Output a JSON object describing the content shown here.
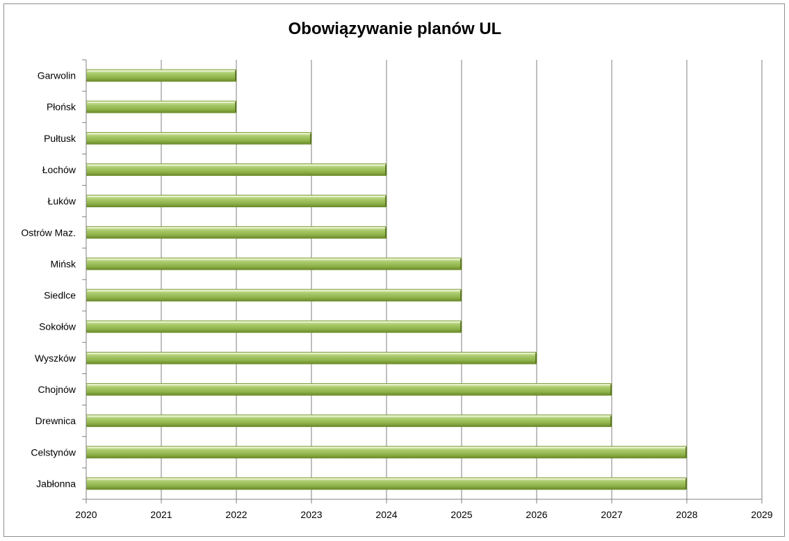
{
  "chart_data": {
    "type": "bar",
    "orientation": "horizontal",
    "title": "Obowiązywanie planów UL",
    "xlabel": "",
    "ylabel": "",
    "categories": [
      "Garwolin",
      "Płońsk",
      "Pułtusk",
      "Łochów",
      "Łuków",
      "Ostrów Maz.",
      "Mińsk",
      "Siedlce",
      "Sokołów",
      "Wyszków",
      "Chojnów",
      "Drewnica",
      "Celstynów",
      "Jabłonna"
    ],
    "values": [
      2022,
      2022,
      2023,
      2024,
      2024,
      2024,
      2025,
      2025,
      2025,
      2026,
      2027,
      2027,
      2028,
      2028
    ],
    "xlim": [
      2020,
      2029
    ],
    "xticks": [
      "2020",
      "2021",
      "2022",
      "2023",
      "2024",
      "2025",
      "2026",
      "2027",
      "2028",
      "2029"
    ],
    "grid": "vertical major gridlines",
    "legend": "none",
    "colors": {
      "bar": "#9bbb59",
      "bar_light": "#d4e6a2",
      "bar_dark": "#6e8c2c",
      "grid": "#7f7f7f"
    }
  }
}
